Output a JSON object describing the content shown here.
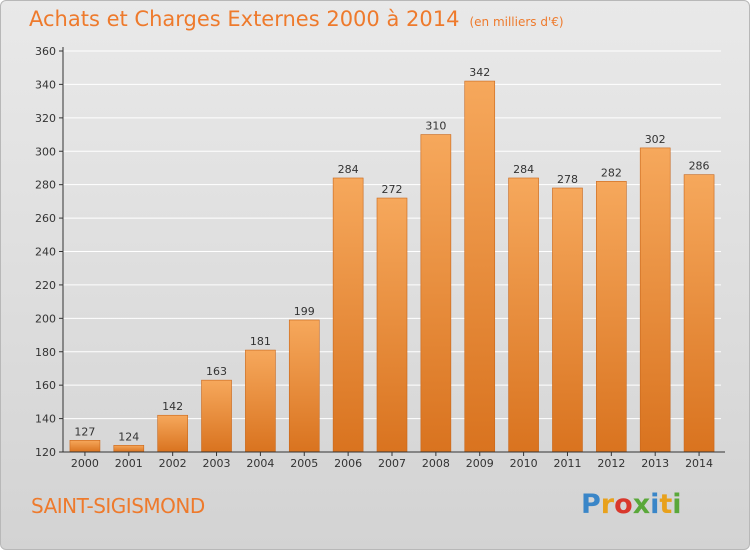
{
  "header": {
    "title": "Achats et Charges Externes 2000 à 2014",
    "unit": "(en milliers d'€)"
  },
  "footer": {
    "location": "SAINT-SIGISMOND",
    "logo_text": "Proxiti",
    "logo_colors": [
      "#3a86c8",
      "#e8a11c",
      "#d9382c",
      "#5aa83a",
      "#3a86c8",
      "#e8a11c",
      "#5aa83a"
    ]
  },
  "colors": {
    "bar_light": "#f6a85c",
    "bar_dark": "#d9731f",
    "accent": "#ee7a2c",
    "grid": "#ffffff",
    "axis": "#333333"
  },
  "chart_data": {
    "type": "bar",
    "title": "Achats et Charges Externes 2000 à 2014",
    "subtitle": "(en milliers d'€)",
    "xlabel": "",
    "ylabel": "",
    "categories": [
      "2000",
      "2001",
      "2002",
      "2003",
      "2004",
      "2005",
      "2006",
      "2007",
      "2008",
      "2009",
      "2010",
      "2011",
      "2012",
      "2013",
      "2014"
    ],
    "values": [
      127,
      124,
      142,
      163,
      181,
      199,
      284,
      272,
      310,
      342,
      284,
      278,
      282,
      302,
      286
    ],
    "ylim": [
      120,
      360
    ],
    "yticks": [
      120,
      140,
      160,
      180,
      200,
      220,
      240,
      260,
      280,
      300,
      320,
      340,
      360
    ],
    "grid": true,
    "data_labels": true
  }
}
